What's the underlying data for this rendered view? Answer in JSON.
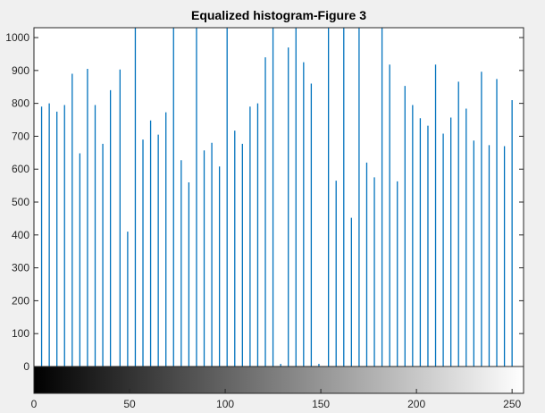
{
  "chart_data": {
    "type": "bar",
    "title": "Equalized histogram-Figure 3",
    "xlabel": "",
    "ylabel": "",
    "xlim": [
      0,
      256
    ],
    "ylim": [
      0,
      1030
    ],
    "x_ticks": [
      0,
      50,
      100,
      150,
      200,
      250
    ],
    "y_ticks": [
      0,
      100,
      200,
      300,
      400,
      500,
      600,
      700,
      800,
      900,
      1000
    ],
    "grid": false,
    "colorbar": "grayscale 0-255 below x-axis",
    "bar_color": "#0072bd",
    "bins": [
      {
        "x": 4,
        "y": 790
      },
      {
        "x": 8,
        "y": 800
      },
      {
        "x": 12,
        "y": 775
      },
      {
        "x": 16,
        "y": 795
      },
      {
        "x": 20,
        "y": 890
      },
      {
        "x": 24,
        "y": 648
      },
      {
        "x": 28,
        "y": 905
      },
      {
        "x": 32,
        "y": 795
      },
      {
        "x": 36,
        "y": 677
      },
      {
        "x": 40,
        "y": 840
      },
      {
        "x": 45,
        "y": 903
      },
      {
        "x": 49,
        "y": 410
      },
      {
        "x": 53,
        "y": 1030
      },
      {
        "x": 57,
        "y": 690
      },
      {
        "x": 61,
        "y": 748
      },
      {
        "x": 65,
        "y": 705
      },
      {
        "x": 69,
        "y": 773
      },
      {
        "x": 73,
        "y": 1030
      },
      {
        "x": 77,
        "y": 627
      },
      {
        "x": 81,
        "y": 560
      },
      {
        "x": 85,
        "y": 1030
      },
      {
        "x": 89,
        "y": 657
      },
      {
        "x": 93,
        "y": 680
      },
      {
        "x": 97,
        "y": 608
      },
      {
        "x": 101,
        "y": 1030
      },
      {
        "x": 105,
        "y": 717
      },
      {
        "x": 109,
        "y": 677
      },
      {
        "x": 113,
        "y": 790
      },
      {
        "x": 117,
        "y": 800
      },
      {
        "x": 121,
        "y": 940
      },
      {
        "x": 125,
        "y": 1030
      },
      {
        "x": 129,
        "y": 8
      },
      {
        "x": 133,
        "y": 970
      },
      {
        "x": 137,
        "y": 1030
      },
      {
        "x": 141,
        "y": 925
      },
      {
        "x": 145,
        "y": 860
      },
      {
        "x": 149,
        "y": 8
      },
      {
        "x": 154,
        "y": 1030
      },
      {
        "x": 158,
        "y": 565
      },
      {
        "x": 162,
        "y": 1030
      },
      {
        "x": 166,
        "y": 452
      },
      {
        "x": 170,
        "y": 1030
      },
      {
        "x": 174,
        "y": 620
      },
      {
        "x": 178,
        "y": 575
      },
      {
        "x": 182,
        "y": 1030
      },
      {
        "x": 186,
        "y": 918
      },
      {
        "x": 190,
        "y": 563
      },
      {
        "x": 194,
        "y": 853
      },
      {
        "x": 198,
        "y": 795
      },
      {
        "x": 202,
        "y": 755
      },
      {
        "x": 206,
        "y": 732
      },
      {
        "x": 210,
        "y": 918
      },
      {
        "x": 214,
        "y": 708
      },
      {
        "x": 218,
        "y": 757
      },
      {
        "x": 222,
        "y": 866
      },
      {
        "x": 226,
        "y": 784
      },
      {
        "x": 230,
        "y": 687
      },
      {
        "x": 234,
        "y": 896
      },
      {
        "x": 238,
        "y": 673
      },
      {
        "x": 242,
        "y": 874
      },
      {
        "x": 246,
        "y": 670
      },
      {
        "x": 250,
        "y": 810
      }
    ]
  }
}
